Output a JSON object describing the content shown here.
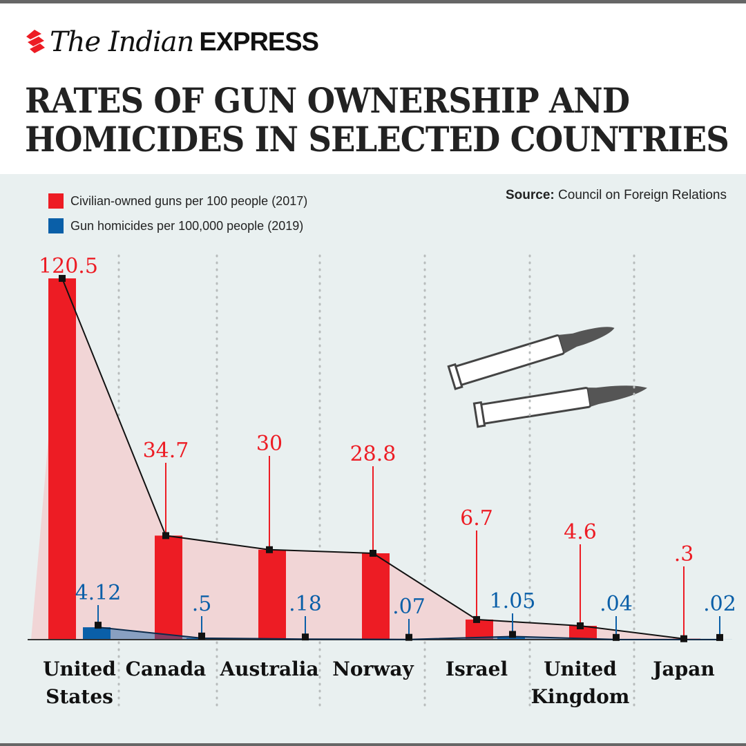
{
  "brand": {
    "logo_text_1": "The Indian",
    "logo_text_2": "EXPRESS"
  },
  "title_line1": "RATES OF GUN OWNERSHIP AND",
  "title_line2": "HOMICIDES IN SELECTED COUNTRIES",
  "source": {
    "label": "Source:",
    "text": "Council on Foreign Relations"
  },
  "colors": {
    "guns": "#ed1c24",
    "homicides": "#0a5fa8",
    "area": "#f1d5d6",
    "background": "#e9f0f0"
  },
  "chart_data": {
    "type": "bar",
    "categories": [
      "United States",
      "Canada",
      "Australia",
      "Norway",
      "Israel",
      "United Kingdom",
      "Japan"
    ],
    "category_lines": [
      [
        "United",
        "States"
      ],
      [
        "Canada"
      ],
      [
        "Australia"
      ],
      [
        "Norway"
      ],
      [
        "Israel"
      ],
      [
        "United",
        "Kingdom"
      ],
      [
        "Japan"
      ]
    ],
    "series": [
      {
        "name": "Civilian-owned guns per 100 people (2017)",
        "values": [
          120.5,
          34.7,
          30,
          28.8,
          6.7,
          4.6,
          0.3
        ],
        "labels": [
          "120.5",
          "34.7",
          "30",
          "28.8",
          "6.7",
          "4.6",
          ".3"
        ]
      },
      {
        "name": "Gun homicides per 100,000 people (2019)",
        "values": [
          4.12,
          0.5,
          0.18,
          0.07,
          1.05,
          0.04,
          0.02
        ],
        "labels": [
          "4.12",
          ".5",
          ".18",
          ".07",
          "1.05",
          ".04",
          ".02"
        ]
      }
    ],
    "legend": "top-left",
    "grid": false
  }
}
